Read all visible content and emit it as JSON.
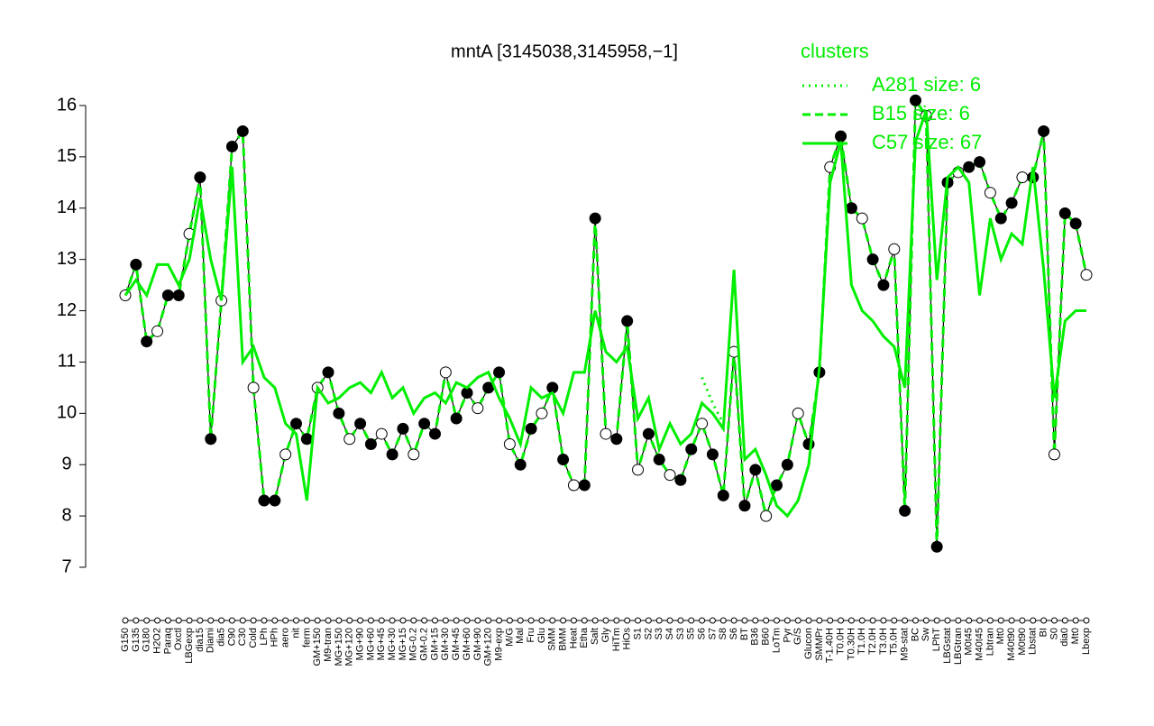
{
  "chart_data": {
    "type": "line",
    "title": "mntA [3145038,3145958,−1]",
    "legend_title": "clusters",
    "legend_color": "#00ee00",
    "ylim": [
      7,
      16
    ],
    "yticks": [
      7,
      8,
      9,
      10,
      11,
      12,
      13,
      14,
      15,
      16
    ],
    "categories": [
      "G150",
      "G135",
      "G180",
      "H2O2",
      "Paraq",
      "Oxctl",
      "LBGexp",
      "dia15",
      "Diami",
      "dia5",
      "C90",
      "C30",
      "Cold",
      "LPh",
      "HPh",
      "aero",
      "nit",
      "ferm",
      "GM+150",
      "M9-tran",
      "MG+150",
      "MG+120",
      "MG+90",
      "MG+60",
      "MG+45",
      "MG+30",
      "MG+15",
      "MG-0.2",
      "GM-0.2",
      "GM+15",
      "GM+30",
      "GM+45",
      "GM+60",
      "GM+90",
      "GM+120",
      "M9-exp",
      "M/G",
      "Mal",
      "Fru",
      "Glu",
      "SMM",
      "BMM",
      "Heat",
      "Etha",
      "Salt",
      "Gly",
      "HiTm",
      "HiOs",
      "S1",
      "S2",
      "S3",
      "S4",
      "S3",
      "S5",
      "S6",
      "S7",
      "S8",
      "S6",
      "BT",
      "B36",
      "B60",
      "LoTm",
      "Pyr",
      "G/S",
      "Glucon",
      "SMMPr",
      "T-1.40H",
      "T0.0H",
      "T0.30H",
      "T1.0H",
      "T2.0H",
      "T3.0H",
      "T5.0H",
      "M9-stat",
      "BC",
      "Sw",
      "LPhT",
      "LBGstat",
      "LBGtran",
      "M0t45",
      "M40t45",
      "Lbtran",
      "Mt0",
      "M40t90",
      "M0t90",
      "Lbstat",
      "BI",
      "S0",
      "dia0",
      "Mt0",
      "Lbexp"
    ],
    "series": [
      {
        "name": "A281 size: 6",
        "color": "#00ee00",
        "style": "dotted",
        "values": [
          null,
          null,
          null,
          null,
          null,
          null,
          null,
          null,
          null,
          null,
          null,
          null,
          null,
          null,
          null,
          null,
          null,
          null,
          null,
          null,
          null,
          null,
          null,
          null,
          null,
          null,
          null,
          null,
          null,
          null,
          null,
          null,
          null,
          null,
          null,
          null,
          null,
          null,
          null,
          null,
          null,
          null,
          null,
          null,
          null,
          null,
          null,
          null,
          null,
          null,
          null,
          null,
          null,
          null,
          10.7,
          10.2,
          9.8,
          null,
          null,
          null,
          null,
          null,
          null,
          null,
          null,
          null,
          null,
          null,
          null,
          null,
          null,
          null,
          null,
          null,
          null,
          null,
          null,
          null,
          null,
          null,
          null,
          null,
          null,
          null,
          null,
          null,
          null,
          null,
          null,
          null,
          null
        ]
      },
      {
        "name": "B15 size: 6",
        "color": "#00ee00",
        "style": "dashed",
        "markers": true,
        "values": [
          12.3,
          12.9,
          11.4,
          11.6,
          12.3,
          12.3,
          13.5,
          14.6,
          9.5,
          12.2,
          15.2,
          15.5,
          10.5,
          8.3,
          8.3,
          9.2,
          9.8,
          9.5,
          10.5,
          10.8,
          10.0,
          9.5,
          9.8,
          9.4,
          9.6,
          9.2,
          9.7,
          9.2,
          9.8,
          9.6,
          10.8,
          9.9,
          10.4,
          10.1,
          10.5,
          10.8,
          9.4,
          9.0,
          9.7,
          10.0,
          10.5,
          9.1,
          8.6,
          8.6,
          13.8,
          9.6,
          9.5,
          11.8,
          8.9,
          9.6,
          9.1,
          8.8,
          8.7,
          9.3,
          9.8,
          9.2,
          8.4,
          11.2,
          8.2,
          8.9,
          8.0,
          8.6,
          9.0,
          10.0,
          9.4,
          10.8,
          14.8,
          15.4,
          14.0,
          13.8,
          13.0,
          12.5,
          13.2,
          8.1,
          16.1,
          15.8,
          7.4,
          14.5,
          14.7,
          14.8,
          14.9,
          14.3,
          13.8,
          14.1,
          14.6,
          14.6,
          15.5,
          9.2,
          13.9,
          13.7,
          12.7
        ]
      },
      {
        "name": "C57 size: 67",
        "color": "#00ee00",
        "style": "solid",
        "values": [
          12.3,
          12.6,
          12.3,
          12.9,
          12.9,
          12.5,
          13.0,
          14.2,
          13.0,
          12.2,
          14.8,
          11.0,
          11.3,
          10.7,
          10.5,
          9.8,
          9.6,
          8.3,
          10.5,
          10.2,
          10.3,
          10.5,
          10.6,
          10.4,
          10.8,
          10.3,
          10.5,
          10.0,
          10.3,
          10.4,
          10.2,
          10.6,
          10.5,
          10.7,
          10.8,
          10.3,
          9.9,
          9.4,
          10.5,
          10.3,
          10.4,
          10.0,
          10.8,
          10.8,
          12.0,
          11.2,
          11.0,
          11.3,
          9.9,
          10.3,
          9.3,
          9.8,
          9.4,
          9.6,
          10.2,
          10.0,
          9.7,
          12.8,
          9.1,
          9.3,
          8.8,
          8.2,
          8.0,
          8.3,
          9.0,
          10.9,
          14.5,
          15.3,
          12.5,
          12.0,
          11.8,
          11.5,
          11.3,
          10.5,
          15.3,
          15.9,
          12.6,
          14.6,
          14.8,
          14.5,
          12.3,
          13.8,
          13.0,
          13.5,
          13.3,
          14.8,
          12.8,
          10.3,
          11.8,
          12.0,
          12.0
        ]
      }
    ]
  }
}
